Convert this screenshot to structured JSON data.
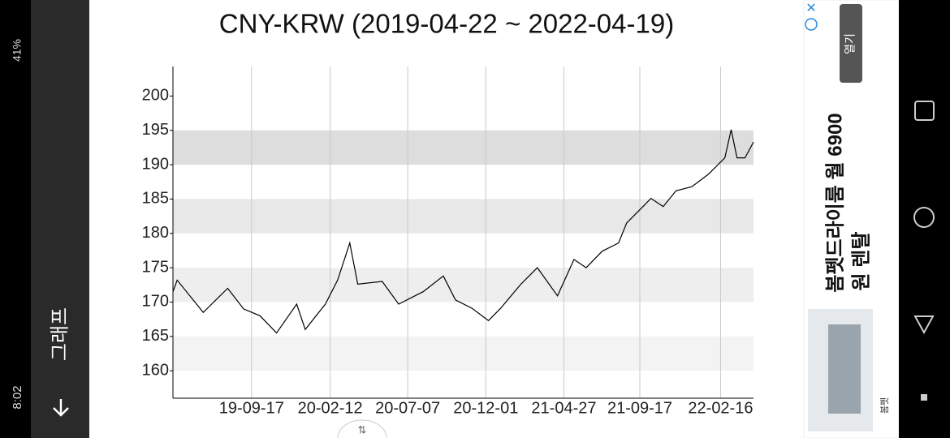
{
  "status_bar": {
    "time": "8:02",
    "battery": "41%"
  },
  "app_bar": {
    "title": "그래프"
  },
  "chart_data": {
    "type": "line",
    "title": "CNY-KRW (2019-04-22 ~ 2022-04-19)",
    "color": "#000000",
    "x": [
      "19-04-22",
      "19-04-30",
      "19-06-18",
      "19-08-03",
      "19-09-02",
      "19-10-03",
      "19-11-03",
      "19-12-11",
      "19-12-27",
      "20-02-03",
      "20-02-26",
      "20-03-20",
      "20-04-04",
      "20-05-20",
      "20-06-20",
      "20-08-05",
      "20-09-12",
      "20-10-05",
      "20-11-05",
      "20-12-06",
      "20-12-29",
      "21-02-05",
      "21-03-08",
      "21-04-15",
      "21-05-16",
      "21-06-08",
      "21-07-08",
      "21-08-08",
      "21-08-23",
      "21-09-23",
      "21-10-08",
      "21-10-31",
      "21-11-24",
      "21-12-24",
      "22-01-24",
      "22-02-24",
      "22-03-08",
      "22-03-19",
      "22-04-03",
      "22-04-19"
    ],
    "values": [
      171.5,
      173.2,
      168.5,
      172,
      169,
      168,
      165.5,
      169.7,
      166,
      169.7,
      173.2,
      178.6,
      172.6,
      173,
      169.7,
      171.5,
      173.8,
      170.3,
      169.1,
      167.3,
      169.1,
      172.6,
      175,
      170.9,
      176.2,
      175,
      177.4,
      178.6,
      181.5,
      183.9,
      185.1,
      183.9,
      186.2,
      186.8,
      188.6,
      191,
      195.1,
      191,
      191,
      193.3
    ],
    "xlim": [
      "19-04-22",
      "22-04-19"
    ],
    "xticks": [
      "19-09-17",
      "20-02-12",
      "20-07-07",
      "20-12-01",
      "21-04-27",
      "21-09-17",
      "22-02-16"
    ],
    "ylim": [
      156,
      204.3
    ],
    "yticks": [
      160,
      165,
      170,
      175,
      180,
      185,
      190,
      195,
      200
    ],
    "grid": true,
    "bands": true
  },
  "ad": {
    "button": "열기",
    "headline": [
      "봄펫드라이룸 월 6900",
      "원 렌탈"
    ],
    "brand": "봄펫"
  }
}
